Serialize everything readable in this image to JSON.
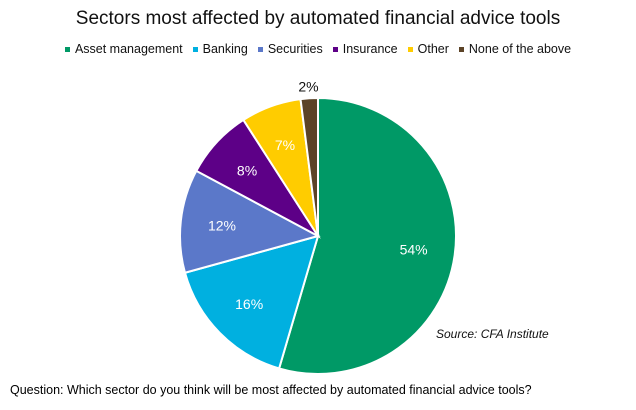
{
  "chart_data": {
    "type": "pie",
    "title": "Sectors most affected by automated financial advice tools",
    "legend_position": "top",
    "slices": [
      {
        "label": "Asset management",
        "value": 54,
        "display": "54%",
        "color": "#009966",
        "label_color": "#ffffff"
      },
      {
        "label": "Banking",
        "value": 16,
        "display": "16%",
        "color": "#00b0e0",
        "label_color": "#ffffff"
      },
      {
        "label": "Securities",
        "value": 12,
        "display": "12%",
        "color": "#5b78c9",
        "label_color": "#ffffff"
      },
      {
        "label": "Insurance",
        "value": 8,
        "display": "8%",
        "color": "#5d0087",
        "label_color": "#ffffff"
      },
      {
        "label": "Other",
        "value": 7,
        "display": "7%",
        "color": "#ffcc00",
        "label_color": "#ffffff"
      },
      {
        "label": "None of the above",
        "value": 2,
        "display": "2%",
        "color": "#5c4327",
        "label_color": "#111111"
      }
    ]
  },
  "source": "Source: CFA Institute",
  "question": "Question: Which sector do you think will be most affected by automated financial advice tools?"
}
